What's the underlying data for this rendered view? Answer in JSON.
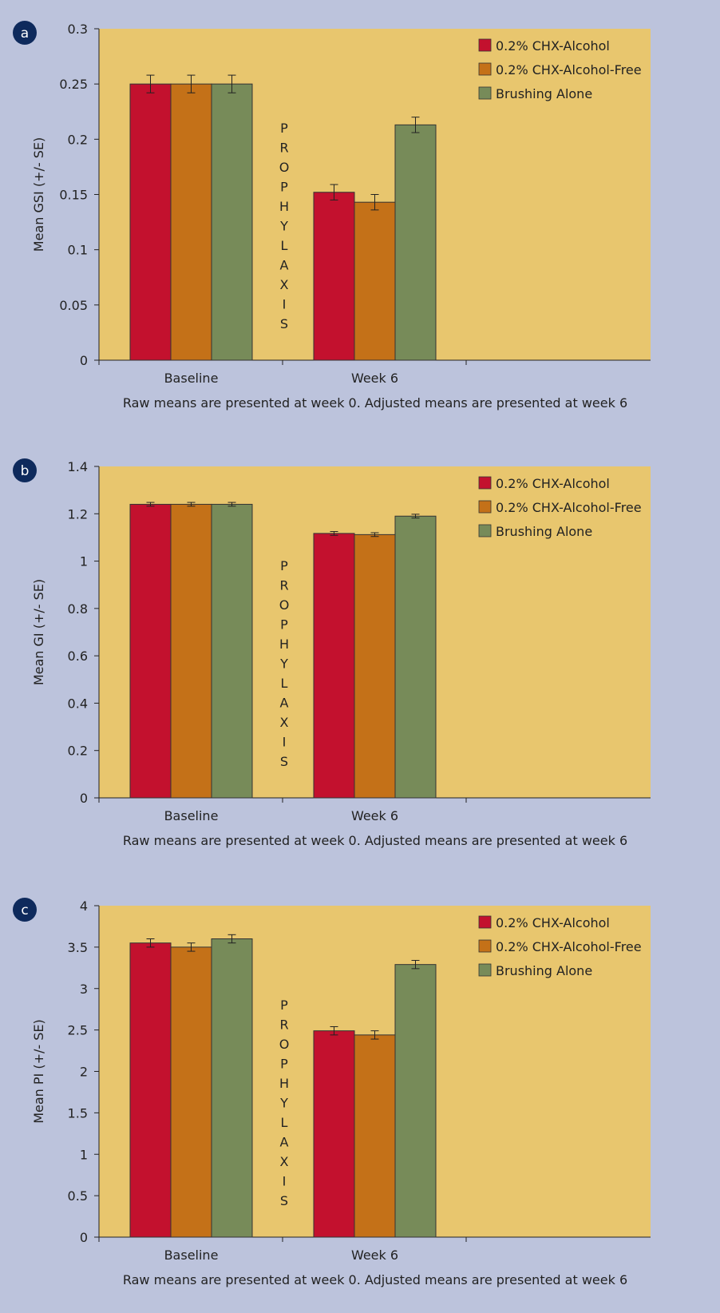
{
  "chart_data": [
    {
      "panel_label": "a",
      "type": "bar",
      "categories": [
        "Baseline",
        "Week 6"
      ],
      "series": [
        {
          "name": "0.2% CHX-Alcohol",
          "values": [
            0.25,
            0.152
          ],
          "errors": [
            0.008,
            0.007
          ]
        },
        {
          "name": "0.2% CHX-Alcohol-Free",
          "values": [
            0.25,
            0.143
          ],
          "errors": [
            0.008,
            0.007
          ]
        },
        {
          "name": "Brushing Alone",
          "values": [
            0.25,
            0.213
          ],
          "errors": [
            0.008,
            0.007
          ]
        }
      ],
      "ylabel": "Mean GSI (+/- SE)",
      "ylim": [
        0,
        0.3
      ],
      "yticks": [
        "0",
        "0.05",
        "0.1",
        "0.15",
        "0.2",
        "0.25",
        "0.3"
      ],
      "annotation": "PROPHYLAXIS",
      "caption": "Raw means are presented at week 0. Adjusted means are presented at week 6",
      "legend_position": "top-right",
      "grid": false
    },
    {
      "panel_label": "b",
      "type": "bar",
      "categories": [
        "Baseline",
        "Week 6"
      ],
      "series": [
        {
          "name": "0.2% CHX-Alcohol",
          "values": [
            1.24,
            1.117
          ],
          "errors": [
            0.008,
            0.008
          ]
        },
        {
          "name": "0.2% CHX-Alcohol-Free",
          "values": [
            1.24,
            1.112
          ],
          "errors": [
            0.008,
            0.008
          ]
        },
        {
          "name": "Brushing Alone",
          "values": [
            1.24,
            1.19
          ],
          "errors": [
            0.008,
            0.008
          ]
        }
      ],
      "ylabel": "Mean GI (+/- SE)",
      "ylim": [
        0,
        1.4
      ],
      "yticks": [
        "0",
        "0.2",
        "0.4",
        "0.6",
        "0.8",
        "1",
        "1.2",
        "1.4"
      ],
      "annotation": "PROPHYLAXIS",
      "caption": "Raw means are presented at week 0. Adjusted means are presented at week 6",
      "legend_position": "top-right",
      "grid": false
    },
    {
      "panel_label": "c",
      "type": "bar",
      "categories": [
        "Baseline",
        "Week 6"
      ],
      "series": [
        {
          "name": "0.2% CHX-Alcohol",
          "values": [
            3.55,
            2.49
          ],
          "errors": [
            0.05,
            0.05
          ]
        },
        {
          "name": "0.2% CHX-Alcohol-Free",
          "values": [
            3.5,
            2.44
          ],
          "errors": [
            0.05,
            0.05
          ]
        },
        {
          "name": "Brushing Alone",
          "values": [
            3.6,
            3.29
          ],
          "errors": [
            0.05,
            0.05
          ]
        }
      ],
      "ylabel": "Mean PI (+/- SE)",
      "ylim": [
        0,
        4
      ],
      "yticks": [
        "0",
        "0.5",
        "1",
        "1.5",
        "2",
        "2.5",
        "3",
        "3.5",
        "4"
      ],
      "annotation": "PROPHYLAXIS",
      "caption": "Raw means are presented at week 0. Adjusted means are presented at week 6",
      "legend_position": "top-right",
      "grid": false
    }
  ],
  "colors": {
    "series": [
      "#c3112e",
      "#c47118",
      "#778b59"
    ],
    "plot_background": "#e8c66e",
    "page_background": "#bcc3dc",
    "panel_badge": "#0e2a5c"
  }
}
